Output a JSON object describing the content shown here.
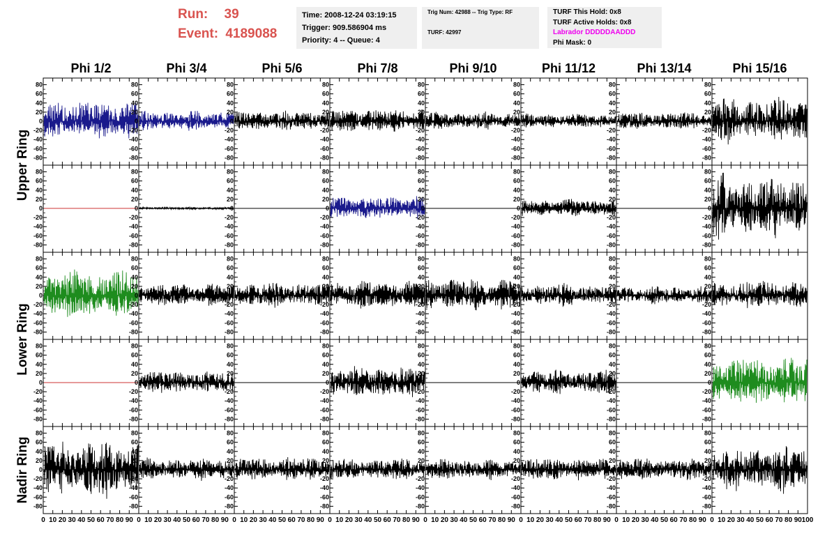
{
  "header": {
    "run_label": "Run:",
    "run_value": "39",
    "event_label": "Event:",
    "event_value": "4189088",
    "time": "Time: 2008-12-24 03:19:15",
    "trigger": "Trigger: 909.586904 ms",
    "priority": "Priority: 4 -- Queue: 4",
    "trig_num": "Trig Num: 42988 -- Trig Type: RF",
    "turf": "TURF: 42997",
    "turf_this_hold": "TURF This Hold: 0x8",
    "turf_active_holds": "TURF Active Holds: 0x8",
    "labrador": "Labrador DDDDDAADDD",
    "phi_mask": "Phi Mask: 0"
  },
  "colors": {
    "header_red": "#d9534f",
    "labrador_magenta": "#ee00ee",
    "trace_black": "#000000",
    "trace_blue": "#1a1a8c",
    "trace_green": "#1e8c1e",
    "trace_red": "#cc3333",
    "info_box_bg": "#efefef"
  },
  "chart_data": {
    "type": "line",
    "columns": [
      "Phi 1/2",
      "Phi 3/4",
      "Phi 5/6",
      "Phi 7/8",
      "Phi 9/10",
      "Phi 11/12",
      "Phi 13/14",
      "Phi 15/16"
    ],
    "row_groups": [
      {
        "label": "Upper Ring",
        "rows": [
          0,
          1
        ]
      },
      {
        "label": "Lower Ring",
        "rows": [
          2,
          3
        ]
      },
      {
        "label": "Nadir Ring",
        "rows": [
          4
        ]
      }
    ],
    "xlim": [
      0,
      100
    ],
    "ylim": [
      -90,
      90
    ],
    "x_ticks": [
      "0",
      "10",
      "20",
      "30",
      "40",
      "50",
      "60",
      "70",
      "80",
      "90",
      "100"
    ],
    "y_ticks": [
      "80",
      "60",
      "40",
      "20",
      "0",
      "-20",
      "-40",
      "-60",
      "-80"
    ],
    "trace_samples": 256,
    "panels": [
      [
        {
          "color": "blue",
          "amplitude": 50
        },
        {
          "color": "blue",
          "amplitude": 25
        },
        {
          "color": "black",
          "amplitude": 25
        },
        {
          "color": "black",
          "amplitude": 30
        },
        {
          "color": "black",
          "amplitude": 22
        },
        {
          "color": "black",
          "amplitude": 18
        },
        {
          "color": "black",
          "amplitude": 22
        },
        {
          "color": "black",
          "amplitude": 55
        }
      ],
      [
        {
          "color": "red",
          "amplitude": 0
        },
        {
          "color": "black",
          "amplitude": 3
        },
        {
          "color": "black",
          "amplitude": 0
        },
        {
          "color": "blue",
          "amplitude": 30
        },
        {
          "color": "black",
          "amplitude": 0
        },
        {
          "color": "black",
          "amplitude": 22
        },
        {
          "color": "black",
          "amplitude": 0
        },
        {
          "color": "black",
          "amplitude": 80
        }
      ],
      [
        {
          "color": "green",
          "amplitude": 60
        },
        {
          "color": "black",
          "amplitude": 28
        },
        {
          "color": "black",
          "amplitude": 30
        },
        {
          "color": "black",
          "amplitude": 35
        },
        {
          "color": "black",
          "amplitude": 40
        },
        {
          "color": "black",
          "amplitude": 28
        },
        {
          "color": "black",
          "amplitude": 22
        },
        {
          "color": "black",
          "amplitude": 35
        }
      ],
      [
        {
          "color": "red",
          "amplitude": 0
        },
        {
          "color": "black",
          "amplitude": 28
        },
        {
          "color": "black",
          "amplitude": 0
        },
        {
          "color": "black",
          "amplitude": 38
        },
        {
          "color": "black",
          "amplitude": 0
        },
        {
          "color": "black",
          "amplitude": 30
        },
        {
          "color": "black",
          "amplitude": 0
        },
        {
          "color": "green",
          "amplitude": 60
        }
      ],
      [
        {
          "color": "black",
          "amplitude": 70
        },
        {
          "color": "black",
          "amplitude": 28
        },
        {
          "color": "black",
          "amplitude": 30
        },
        {
          "color": "black",
          "amplitude": 28
        },
        {
          "color": "black",
          "amplitude": 25
        },
        {
          "color": "black",
          "amplitude": 28
        },
        {
          "color": "black",
          "amplitude": 28
        },
        {
          "color": "black",
          "amplitude": 55
        }
      ]
    ]
  }
}
